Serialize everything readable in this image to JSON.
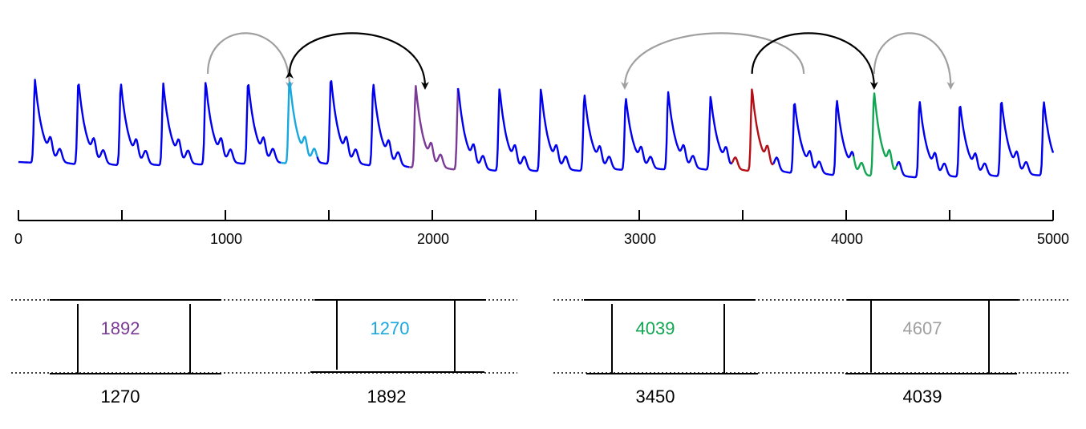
{
  "axis": {
    "min": 0,
    "max": 5000,
    "tick_labels": [
      "0",
      "1000",
      "2000",
      "3000",
      "4000",
      "5000"
    ],
    "major_every": 1000,
    "minor_every": 500
  },
  "signal": {
    "beat_positions": [
      80,
      290,
      495,
      700,
      905,
      1110,
      1310,
      1510,
      1715,
      1920,
      2125,
      2325,
      2525,
      2735,
      2935,
      3140,
      3345,
      3545,
      3750,
      3955,
      4135,
      4355,
      4550,
      4750,
      4955
    ],
    "beat_amplitudes": [
      0.74,
      0.75,
      0.74,
      0.73,
      0.74,
      0.74,
      0.76,
      0.78,
      0.74,
      0.73,
      0.74,
      0.74,
      0.74,
      0.69,
      0.65,
      0.69,
      0.66,
      0.74,
      0.65,
      0.68,
      0.76,
      0.69,
      0.66,
      0.69,
      0.67
    ],
    "colors": {
      "base": "#0000ee",
      "cyan": "#18a8e0",
      "purple": "#7a3a96",
      "red": "#b40f16",
      "green": "#12a653"
    },
    "highlights": [
      {
        "color": "purple",
        "start": 1892,
        "end": 2125
      },
      {
        "color": "cyan",
        "start": 1270,
        "end": 1445
      },
      {
        "color": "red",
        "start": 3450,
        "end": 3650
      },
      {
        "color": "green",
        "start": 4039,
        "end": 4245
      }
    ]
  },
  "arcs": [
    {
      "from": 915,
      "to": 1310,
      "color": "#a0a0a0",
      "arrow": true
    },
    {
      "from": 1310,
      "to": 1965,
      "color": "#000000",
      "arrow": "both"
    },
    {
      "from": 3795,
      "to": 2930,
      "color": "#a0a0a0",
      "arrow": true
    },
    {
      "from": 3545,
      "to": 4135,
      "color": "#000000",
      "arrow": true
    },
    {
      "from": 4135,
      "to": 4505,
      "color": "#a0a0a0",
      "arrow": true
    }
  ],
  "boxes": [
    {
      "top_label": "1892",
      "top_color": "#7a3a96",
      "bottom_label": "1270"
    },
    {
      "top_label": "1270",
      "top_color": "#18a8e0",
      "bottom_label": "1892"
    },
    {
      "top_label": "4039",
      "top_color": "#12a653",
      "bottom_label": "3450"
    },
    {
      "top_label": "4607",
      "top_color": "#a0a0a0",
      "bottom_label": "4039"
    }
  ]
}
